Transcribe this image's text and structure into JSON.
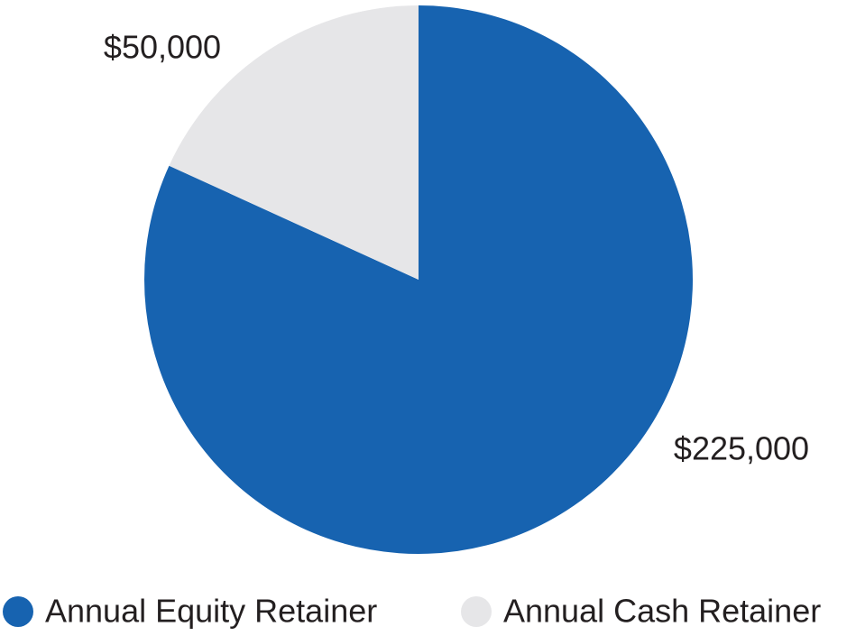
{
  "chart_data": {
    "type": "pie",
    "categories": [
      "Annual Equity Retainer",
      "Annual Cash Retainer"
    ],
    "values": [
      225000,
      50000
    ],
    "value_labels": [
      "$225,000",
      "$50,000"
    ],
    "colors": [
      "#1763b0",
      "#e6e6e8"
    ]
  }
}
